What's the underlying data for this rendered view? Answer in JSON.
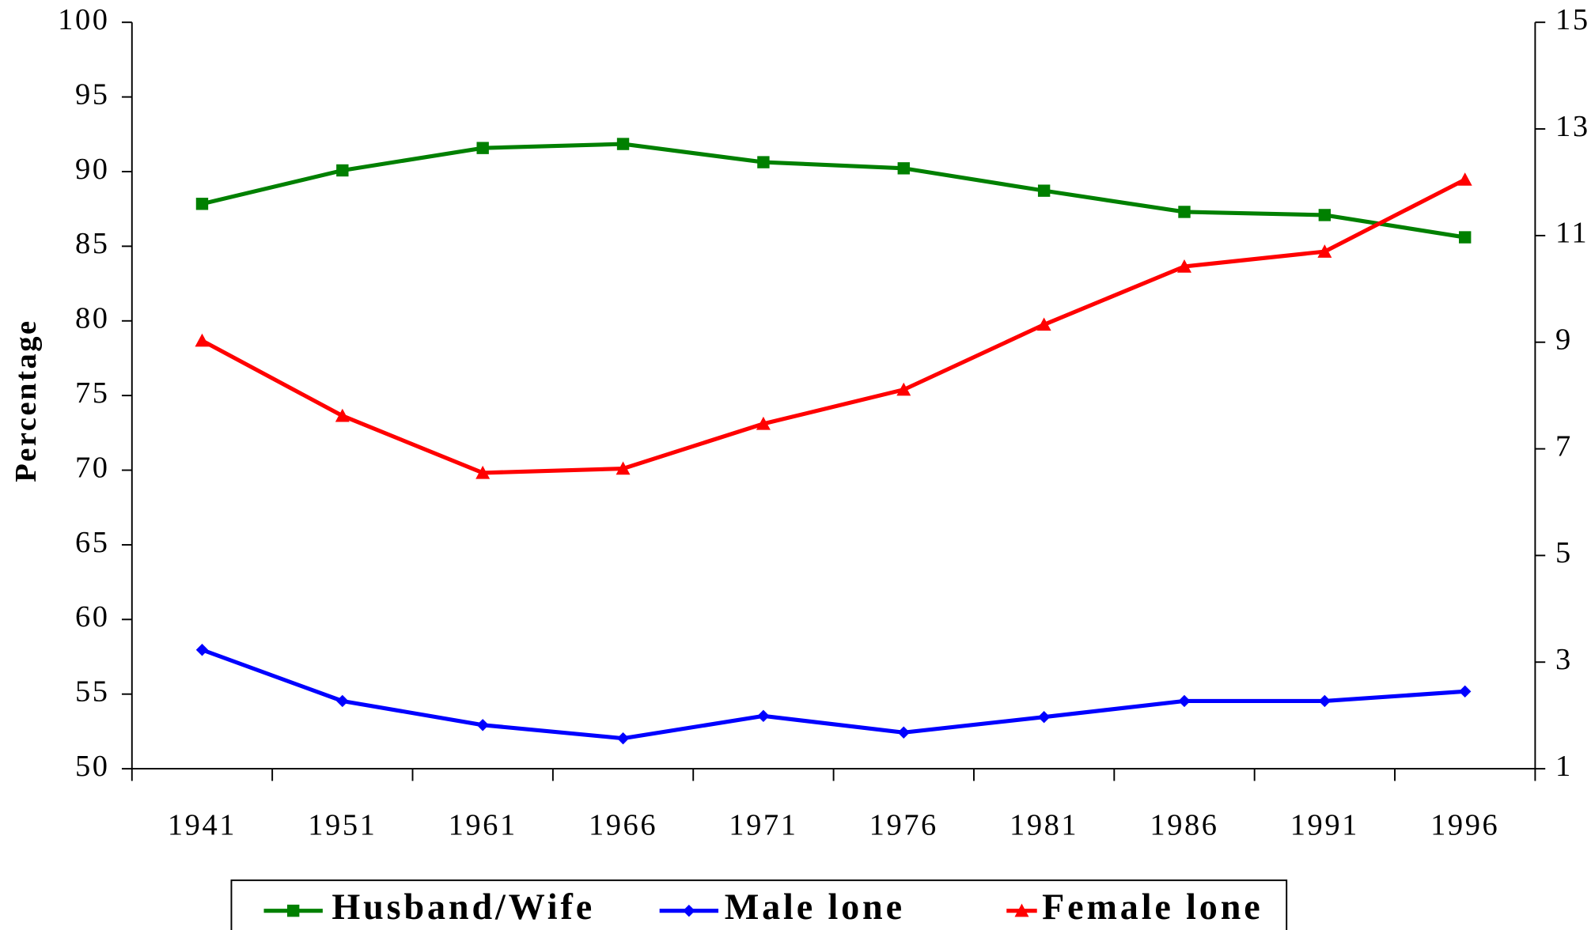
{
  "chart_data": {
    "type": "line",
    "y_label": "Percentage",
    "categories": [
      "1941",
      "1951",
      "1961",
      "1966",
      "1971",
      "1976",
      "1981",
      "1986",
      "1991",
      "1996"
    ],
    "ylim": [
      50,
      100
    ],
    "yticks": [
      50,
      55,
      60,
      65,
      70,
      75,
      80,
      85,
      90,
      95,
      100
    ],
    "y2lim": [
      1,
      15
    ],
    "y2ticks": [
      1,
      3,
      5,
      7,
      9,
      11,
      13,
      15
    ],
    "grid": false,
    "legend": "bottom",
    "series": [
      {
        "name": "Husband/Wife",
        "color": "#008000",
        "marker": "square",
        "values": [
          87.84,
          90.08,
          91.58,
          91.85,
          90.63,
          90.22,
          88.72,
          87.3,
          87.09,
          85.6
        ]
      },
      {
        "name": "Male lone",
        "color": "#0000ff",
        "marker": "diamond",
        "axis": "y2",
        "values": [
          3.23,
          2.27,
          1.82,
          1.57,
          1.99,
          1.68,
          1.97,
          2.27,
          2.27,
          2.45
        ]
      },
      {
        "name": "Female lone",
        "color": "#ff0000",
        "marker": "triangle",
        "axis": "y2",
        "values": [
          9.03,
          7.62,
          6.55,
          6.63,
          7.47,
          8.11,
          9.33,
          10.42,
          10.7,
          12.05
        ]
      }
    ]
  }
}
